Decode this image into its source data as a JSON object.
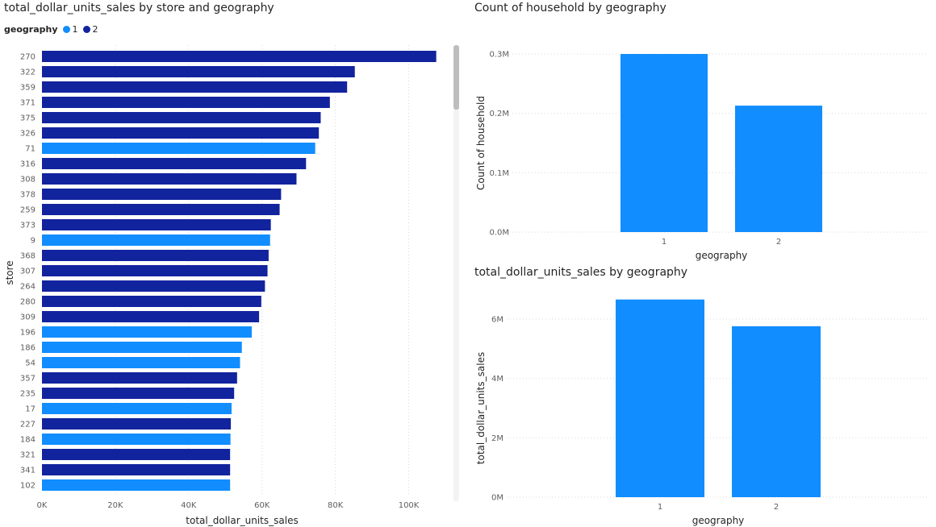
{
  "colors": {
    "geo1": "#118DFF",
    "geo2": "#12239E",
    "grid": "#d9d9d9",
    "axis_text": "#605E5C"
  },
  "left_chart": {
    "title": "total_dollar_units_sales by store and geography",
    "legend_title": "geography",
    "legend_items": [
      "1",
      "2"
    ]
  },
  "right_top": {
    "title": "Count of household by geography"
  },
  "right_bottom": {
    "title": "total_dollar_units_sales by geography"
  },
  "chart_data": [
    {
      "type": "bar",
      "orientation": "horizontal",
      "title": "total_dollar_units_sales by store and geography",
      "xlabel": "total_dollar_units_sales",
      "ylabel": "store",
      "xlim": [
        0,
        110000
      ],
      "x_ticks": [
        "0K",
        "20K",
        "40K",
        "60K",
        "80K",
        "100K"
      ],
      "legend": {
        "title": "geography",
        "position": "top-left",
        "entries": [
          "1",
          "2"
        ]
      },
      "categories": [
        "270",
        "322",
        "359",
        "371",
        "375",
        "326",
        "71",
        "316",
        "308",
        "378",
        "259",
        "373",
        "9",
        "368",
        "307",
        "264",
        "280",
        "309",
        "196",
        "186",
        "54",
        "357",
        "235",
        "17",
        "227",
        "184",
        "321",
        "341",
        "102"
      ],
      "values": [
        107500,
        85300,
        83200,
        78500,
        76000,
        75500,
        74500,
        72000,
        69400,
        65200,
        64800,
        62400,
        62200,
        61800,
        61500,
        60800,
        59800,
        59200,
        57200,
        54500,
        54000,
        53200,
        52400,
        51700,
        51500,
        51400,
        51300,
        51300,
        51300
      ],
      "geography": [
        "2",
        "2",
        "2",
        "2",
        "2",
        "2",
        "1",
        "2",
        "2",
        "2",
        "2",
        "2",
        "1",
        "2",
        "2",
        "2",
        "2",
        "2",
        "1",
        "1",
        "1",
        "2",
        "2",
        "1",
        "2",
        "1",
        "2",
        "2",
        "1"
      ]
    },
    {
      "type": "bar",
      "title": "Count of household by geography",
      "xlabel": "geography",
      "ylabel": "Count of household",
      "categories": [
        "1",
        "2"
      ],
      "values": [
        300000,
        213000
      ],
      "ylim": [
        0,
        300000
      ],
      "y_ticks": [
        "0.0M",
        "0.1M",
        "0.2M",
        "0.3M"
      ]
    },
    {
      "type": "bar",
      "title": "total_dollar_units_sales by geography",
      "xlabel": "geography",
      "ylabel": "total_dollar_units_sales",
      "categories": [
        "1",
        "2"
      ],
      "values": [
        6660000,
        5760000
      ],
      "ylim": [
        0,
        6000000
      ],
      "y_ticks": [
        "0M",
        "2M",
        "4M",
        "6M"
      ]
    }
  ]
}
